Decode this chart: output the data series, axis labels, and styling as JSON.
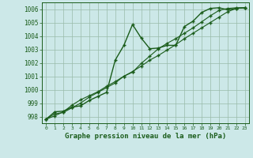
{
  "xlabel": "Graphe pression niveau de la mer (hPa)",
  "bg_color": "#cce8e8",
  "grid_color": "#99bbaa",
  "line_color": "#1a5c1a",
  "marker": "+",
  "ylim": [
    997.5,
    1006.5
  ],
  "xlim": [
    -0.5,
    23.5
  ],
  "yticks": [
    998,
    999,
    1000,
    1001,
    1002,
    1003,
    1004,
    1005,
    1006
  ],
  "xticks": [
    0,
    1,
    2,
    3,
    4,
    5,
    6,
    7,
    8,
    9,
    10,
    11,
    12,
    13,
    14,
    15,
    16,
    17,
    18,
    19,
    20,
    21,
    22,
    23
  ],
  "series": [
    [
      997.8,
      998.35,
      998.4,
      998.7,
      998.8,
      999.2,
      999.5,
      999.8,
      1002.2,
      1003.3,
      1004.85,
      1003.85,
      1003.05,
      1003.1,
      1003.3,
      1003.3,
      1004.7,
      1005.1,
      1005.75,
      1006.05,
      1006.1,
      1005.95,
      1006.05,
      1006.1
    ],
    [
      997.8,
      998.2,
      998.3,
      998.65,
      999.0,
      999.45,
      999.8,
      1000.15,
      1000.5,
      1001.0,
      1001.3,
      1001.95,
      1002.5,
      1003.05,
      1003.45,
      1003.8,
      1004.2,
      1004.6,
      1005.05,
      1005.5,
      1005.9,
      1006.05,
      1006.1,
      1006.1
    ],
    [
      997.8,
      998.05,
      998.35,
      998.85,
      999.25,
      999.55,
      999.85,
      1000.25,
      1000.6,
      1001.0,
      1001.35,
      1001.75,
      1002.2,
      1002.55,
      1002.95,
      1003.35,
      1003.8,
      1004.2,
      1004.6,
      1005.0,
      1005.4,
      1005.8,
      1006.05,
      1006.1
    ]
  ]
}
